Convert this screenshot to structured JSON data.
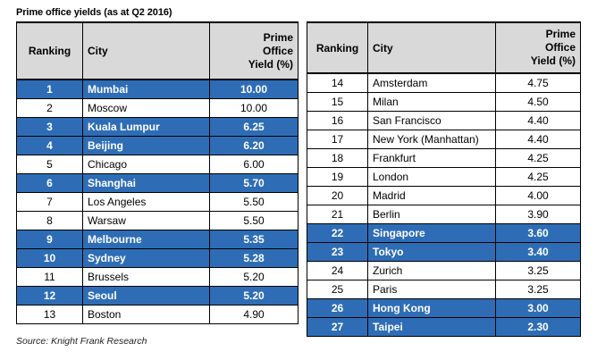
{
  "title": "Prime office yields (as at Q2 2016)",
  "source": "Source: Knight Frank Research",
  "colors": {
    "highlight": "#2e6db6",
    "header_bg": "#d9d9d9"
  },
  "headers": {
    "rank": "Ranking",
    "city": "City",
    "yield_lines": [
      "Prime",
      "Office",
      "Yield (%)"
    ]
  },
  "table_left": {
    "rows": [
      {
        "rank": "1",
        "city": "Mumbai",
        "yield": "10.00",
        "highlight": true
      },
      {
        "rank": "2",
        "city": "Moscow",
        "yield": "10.00",
        "highlight": false
      },
      {
        "rank": "3",
        "city": "Kuala Lumpur",
        "yield": "6.25",
        "highlight": true
      },
      {
        "rank": "4",
        "city": "Beijing",
        "yield": "6.20",
        "highlight": true
      },
      {
        "rank": "5",
        "city": "Chicago",
        "yield": "6.00",
        "highlight": false
      },
      {
        "rank": "6",
        "city": "Shanghai",
        "yield": "5.70",
        "highlight": true
      },
      {
        "rank": "7",
        "city": "Los Angeles",
        "yield": "5.50",
        "highlight": false
      },
      {
        "rank": "8",
        "city": "Warsaw",
        "yield": "5.50",
        "highlight": false
      },
      {
        "rank": "9",
        "city": "Melbourne",
        "yield": "5.35",
        "highlight": true
      },
      {
        "rank": "10",
        "city": "Sydney",
        "yield": "5.28",
        "highlight": true
      },
      {
        "rank": "11",
        "city": "Brussels",
        "yield": "5.20",
        "highlight": false
      },
      {
        "rank": "12",
        "city": "Seoul",
        "yield": "5.20",
        "highlight": true
      },
      {
        "rank": "13",
        "city": "Boston",
        "yield": "4.90",
        "highlight": false
      }
    ]
  },
  "table_right": {
    "rows": [
      {
        "rank": "14",
        "city": "Amsterdam",
        "yield": "4.75",
        "highlight": false
      },
      {
        "rank": "15",
        "city": "Milan",
        "yield": "4.50",
        "highlight": false
      },
      {
        "rank": "16",
        "city": "San Francisco",
        "yield": "4.40",
        "highlight": false
      },
      {
        "rank": "17",
        "city": "New York (Manhattan)",
        "yield": "4.40",
        "highlight": false
      },
      {
        "rank": "18",
        "city": "Frankfurt",
        "yield": "4.25",
        "highlight": false
      },
      {
        "rank": "19",
        "city": "London",
        "yield": "4.25",
        "highlight": false
      },
      {
        "rank": "20",
        "city": "Madrid",
        "yield": "4.00",
        "highlight": false
      },
      {
        "rank": "21",
        "city": "Berlin",
        "yield": "3.90",
        "highlight": false
      },
      {
        "rank": "22",
        "city": "Singapore",
        "yield": "3.60",
        "highlight": true
      },
      {
        "rank": "23",
        "city": "Tokyo",
        "yield": "3.40",
        "highlight": true
      },
      {
        "rank": "24",
        "city": "Zurich",
        "yield": "3.25",
        "highlight": false
      },
      {
        "rank": "25",
        "city": "Paris",
        "yield": "3.25",
        "highlight": false
      },
      {
        "rank": "26",
        "city": "Hong Kong",
        "yield": "3.00",
        "highlight": true
      },
      {
        "rank": "27",
        "city": "Taipei",
        "yield": "2.30",
        "highlight": true
      }
    ]
  }
}
